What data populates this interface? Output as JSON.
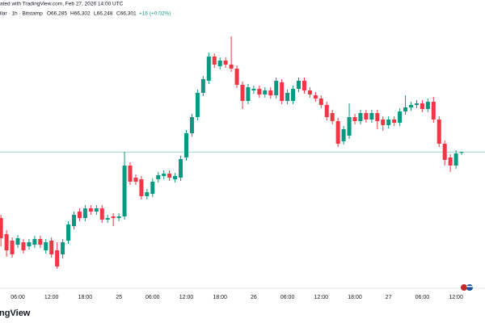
{
  "header": {
    "line1": "ated with TradingView.com, Feb 27, 2026 14:00 UTC",
    "symbol": "llar · 1h · Bitstamp",
    "ohlc": [
      "O66,285",
      "H66,302",
      "L66,248",
      "C66,301"
    ],
    "change": "+16 (+0.02%)"
  },
  "watermark": "ingView",
  "chart_data": {
    "type": "candlestick",
    "categories": [
      null,
      null,
      null,
      "06:00",
      null,
      null,
      null,
      null,
      null,
      "12:00",
      null,
      null,
      null,
      null,
      null,
      "18:00",
      null,
      null,
      null,
      null,
      null,
      "25",
      null,
      null,
      null,
      null,
      null,
      "06:00",
      null,
      null,
      null,
      null,
      null,
      "12:00",
      null,
      null,
      null,
      null,
      null,
      "18:00",
      null,
      null,
      null,
      null,
      null,
      "26",
      null,
      null,
      null,
      null,
      null,
      "06:00",
      null,
      null,
      null,
      null,
      null,
      "12:00",
      null,
      null,
      null,
      null,
      null,
      "18:00",
      null,
      null,
      null,
      null,
      null,
      "27",
      null,
      null,
      null,
      null,
      null,
      "06:00",
      null,
      null,
      null,
      null,
      null,
      "12:00",
      null
    ],
    "open": [
      65075,
      64775,
      64655,
      64580,
      64625,
      64550,
      64580,
      64685,
      64475,
      64655,
      64475,
      64400,
      64655,
      64925,
      65195,
      65075,
      65255,
      65195,
      65255,
      65045,
      65105,
      65075,
      65105,
      66050,
      65825,
      65795,
      65480,
      65525,
      65795,
      65855,
      65900,
      65795,
      65825,
      66200,
      66650,
      66950,
      67400,
      67625,
      68075,
      67895,
      68000,
      67925,
      67850,
      67550,
      67250,
      67445,
      67475,
      67370,
      67445,
      67355,
      67595,
      67250,
      67250,
      67475,
      67625,
      67445,
      67355,
      67295,
      67175,
      67025,
      66875,
      66500,
      66605,
      66950,
      66875,
      67025,
      66905,
      67025,
      66905,
      66800,
      66905,
      66845,
      67055,
      67130,
      67175,
      67205,
      67100,
      67235,
      66905,
      66455,
      66200,
      66050,
      66285
    ],
    "high": [
      65135,
      64850,
      64715,
      64760,
      64685,
      64685,
      64745,
      64745,
      64685,
      64715,
      64625,
      64685,
      65015,
      65195,
      65255,
      65315,
      65315,
      65315,
      65315,
      65135,
      65165,
      65165,
      66305,
      66110,
      65885,
      65855,
      65615,
      65810,
      65930,
      65960,
      65960,
      65915,
      66230,
      66710,
      67010,
      67460,
      67715,
      68150,
      68135,
      68060,
      68060,
      68450,
      67910,
      67610,
      67565,
      67535,
      67535,
      67505,
      67505,
      67685,
      67655,
      67460,
      67535,
      67685,
      67685,
      67505,
      67415,
      67355,
      67235,
      67085,
      66935,
      66785,
      67205,
      67010,
      67085,
      67085,
      67085,
      67085,
      66965,
      66965,
      66965,
      67115,
      67355,
      67235,
      67265,
      67265,
      67295,
      67325,
      66965,
      66515,
      66260,
      66335,
      66302
    ],
    "low": [
      64550,
      64355,
      64340,
      64520,
      64415,
      64490,
      64520,
      64520,
      64415,
      64340,
      64130,
      64325,
      64595,
      64865,
      65015,
      65015,
      65135,
      65135,
      64985,
      64985,
      64925,
      65015,
      65045,
      65690,
      65690,
      65420,
      65420,
      65465,
      65735,
      65795,
      65765,
      65735,
      65765,
      66140,
      66590,
      66890,
      67340,
      67565,
      67865,
      67835,
      67865,
      67790,
      67490,
      67100,
      67190,
      67385,
      67310,
      67310,
      67295,
      67295,
      67190,
      67190,
      67190,
      67415,
      67385,
      67310,
      67235,
      67115,
      66890,
      66815,
      66395,
      66440,
      66545,
      66815,
      66815,
      66845,
      66845,
      66725,
      66695,
      66740,
      66785,
      66785,
      66995,
      67070,
      67115,
      67040,
      67040,
      66845,
      66395,
      66050,
      65930,
      65990,
      66248
    ],
    "close": [
      64700,
      64475,
      64400,
      64700,
      64475,
      64625,
      64685,
      64580,
      64625,
      64400,
      64175,
      64625,
      64955,
      65135,
      65075,
      65255,
      65195,
      65255,
      65045,
      65075,
      65075,
      65105,
      66050,
      65750,
      65750,
      65480,
      65555,
      65750,
      65870,
      65900,
      65825,
      65855,
      66170,
      66650,
      66950,
      67400,
      67655,
      68075,
      67925,
      68000,
      67925,
      67850,
      67550,
      67250,
      67505,
      67475,
      67370,
      67445,
      67355,
      67625,
      67250,
      67400,
      67475,
      67625,
      67445,
      67370,
      67295,
      67175,
      66950,
      66875,
      66455,
      66725,
      66950,
      66875,
      67025,
      66905,
      67025,
      66875,
      66800,
      66905,
      66845,
      67055,
      67130,
      67175,
      67205,
      67100,
      67235,
      66905,
      66455,
      66155,
      66050,
      66275,
      66301
    ],
    "up_color": "#089981",
    "down_color": "#f23645",
    "price_line_color": "#9ad6c6",
    "ylim": [
      63800,
      69125
    ]
  }
}
